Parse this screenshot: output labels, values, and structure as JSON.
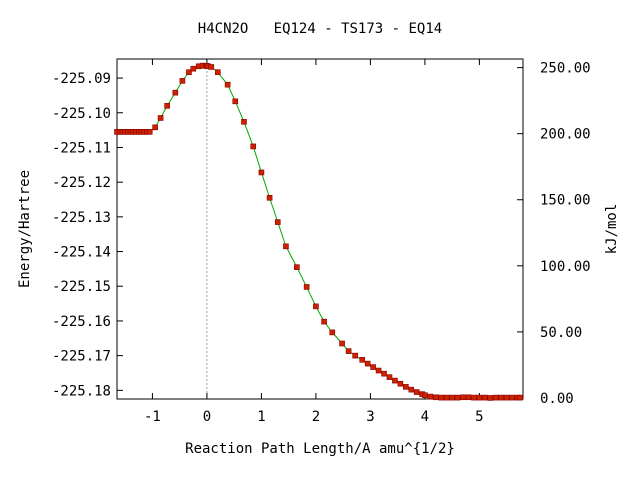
{
  "chart_data": {
    "type": "line",
    "title": "H4CN2O   EQ124 - TS173 - EQ14",
    "xlabel": "Reaction Path Length/A amu^{1/2}",
    "ylabel": "Energy/Hartree",
    "y2label": "kJ/mol",
    "xlim": [
      -1.65,
      5.8
    ],
    "ylim": [
      -225.1825,
      -225.0845
    ],
    "x_ticks": [
      -1,
      0,
      1,
      2,
      3,
      4,
      5
    ],
    "x_tick_labels": [
      "-1",
      "0",
      "1",
      "2",
      "3",
      "4",
      "5"
    ],
    "y_ticks": [
      -225.09,
      -225.1,
      -225.11,
      -225.12,
      -225.13,
      -225.14,
      -225.15,
      -225.16,
      -225.17,
      -225.18
    ],
    "y_tick_labels": [
      "-225.09",
      "-225.10",
      "-225.11",
      "-225.12",
      "-225.13",
      "-225.14",
      "-225.15",
      "-225.16",
      "-225.17",
      "-225.18"
    ],
    "y2_ticks": [
      0,
      50,
      100,
      150,
      200,
      250
    ],
    "y2_tick_labels": [
      "0.00",
      "50.00",
      "100.00",
      "150.00",
      "200.00",
      "250.00"
    ],
    "ts_marker_x": 0,
    "grid": false,
    "line_color": "#00aa00",
    "marker_color": "#cc2200",
    "marker_edge_color": "#8b0000",
    "series": [
      {
        "x": [
          -1.65,
          -1.6,
          -1.55,
          -1.5,
          -1.45,
          -1.4,
          -1.35,
          -1.3,
          -1.25,
          -1.2,
          -1.15,
          -1.1,
          -1.05,
          -0.95,
          -0.85,
          -0.73,
          -0.58,
          -0.45,
          -0.33,
          -0.25,
          -0.15,
          -0.08,
          -0.02,
          0.0,
          0.02,
          0.08,
          0.2,
          0.38,
          0.52,
          0.68,
          0.85,
          1.0,
          1.15,
          1.3,
          1.45,
          1.65,
          1.83,
          2.0,
          2.15,
          2.3,
          2.48,
          2.6,
          2.72,
          2.85,
          2.95,
          3.05,
          3.15,
          3.25,
          3.35,
          3.45,
          3.55,
          3.65,
          3.75,
          3.85,
          3.95,
          4.0,
          4.1,
          4.2,
          4.3,
          4.4,
          4.5,
          4.6,
          4.7,
          4.8,
          4.9,
          5.0,
          5.1,
          5.2,
          5.3,
          5.4,
          5.5,
          5.6,
          5.7,
          5.75
        ],
        "y": [
          -225.1055,
          -225.1055,
          -225.1055,
          -225.1055,
          -225.1055,
          -225.1055,
          -225.1055,
          -225.1055,
          -225.1055,
          -225.1055,
          -225.1055,
          -225.1055,
          -225.1055,
          -225.1042,
          -225.1015,
          -225.098,
          -225.0942,
          -225.0908,
          -225.0883,
          -225.0873,
          -225.0866,
          -225.0864,
          -225.0865,
          -225.0865,
          -225.0866,
          -225.0868,
          -225.0883,
          -225.0919,
          -225.0967,
          -225.1026,
          -225.1097,
          -225.1172,
          -225.1245,
          -225.1315,
          -225.1385,
          -225.1445,
          -225.1502,
          -225.1558,
          -225.1602,
          -225.1633,
          -225.1665,
          -225.1687,
          -225.17,
          -225.1712,
          -225.1723,
          -225.1733,
          -225.1743,
          -225.1752,
          -225.1762,
          -225.1772,
          -225.1781,
          -225.179,
          -225.1798,
          -225.1805,
          -225.1811,
          -225.1814,
          -225.1818,
          -225.182,
          -225.1821,
          -225.1821,
          -225.1821,
          -225.1821,
          -225.182,
          -225.182,
          -225.1821,
          -225.1821,
          -225.1821,
          -225.1822,
          -225.1821,
          -225.1821,
          -225.1821,
          -225.1821,
          -225.1821,
          -225.1821
        ]
      }
    ]
  }
}
